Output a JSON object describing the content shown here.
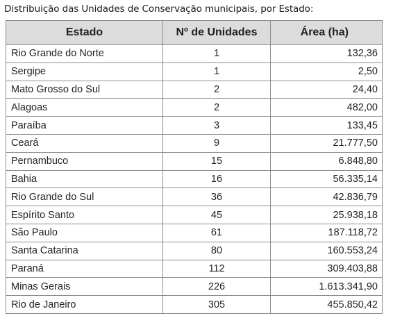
{
  "caption": "Distribuição das Unidades de Conservação municipais, por Estado:",
  "table": {
    "headers": {
      "estado": "Estado",
      "unidades": "Nº de Unidades",
      "area": "Área (ha)"
    },
    "rows": [
      {
        "estado": "Rio Grande do Norte",
        "unidades": "1",
        "area": "132,36"
      },
      {
        "estado": "Sergipe",
        "unidades": "1",
        "area": "2,50"
      },
      {
        "estado": "Mato Grosso do Sul",
        "unidades": "2",
        "area": "24,40"
      },
      {
        "estado": "Alagoas",
        "unidades": "2",
        "area": "482,00"
      },
      {
        "estado": "Paraíba",
        "unidades": "3",
        "area": "133,45"
      },
      {
        "estado": "Ceará",
        "unidades": "9",
        "area": "21.777,50"
      },
      {
        "estado": "Pernambuco",
        "unidades": "15",
        "area": "6.848,80"
      },
      {
        "estado": "Bahia",
        "unidades": "16",
        "area": "56.335,14"
      },
      {
        "estado": "Rio Grande do Sul",
        "unidades": "36",
        "area": "42.836,79"
      },
      {
        "estado": "Espírito Santo",
        "unidades": "45",
        "area": "25.938,18"
      },
      {
        "estado": "São Paulo",
        "unidades": "61",
        "area": "187.118,72"
      },
      {
        "estado": "Santa Catarina",
        "unidades": "80",
        "area": "160.553,24"
      },
      {
        "estado": "Paraná",
        "unidades": "112",
        "area": "309.403,88"
      },
      {
        "estado": "Minas Gerais",
        "unidades": "226",
        "area": "1.613.341,90"
      },
      {
        "estado": "Rio de Janeiro",
        "unidades": "305",
        "area": "455.850,42"
      }
    ]
  },
  "colors": {
    "header_bg": "#dcdcdc",
    "border": "#8c8c8c",
    "text": "#231f20"
  }
}
